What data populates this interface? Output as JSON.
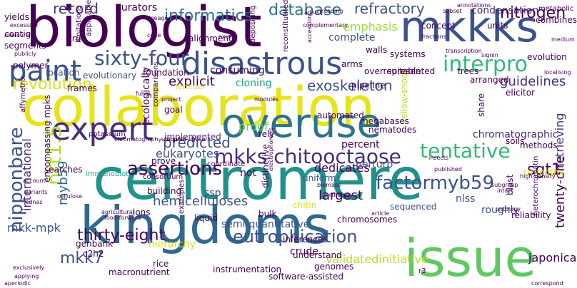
{
  "words": [
    {
      "text": "biologist",
      "color": "#440154"
    },
    {
      "text": "mkkks",
      "color": "#3b528b"
    },
    {
      "text": "collaboration",
      "color": "#e6e419"
    },
    {
      "text": "centromere",
      "color": "#21918c"
    },
    {
      "text": "kingdoms",
      "color": "#31688e"
    },
    {
      "text": "issue",
      "color": "#5ec962"
    },
    {
      "text": "overuse",
      "color": "#2c728e"
    },
    {
      "text": "disastrous",
      "color": "#3b528b"
    },
    {
      "text": "expert",
      "color": "#472d7b"
    },
    {
      "text": "paint",
      "color": "#3b528b"
    },
    {
      "text": "interpro",
      "color": "#35b779"
    },
    {
      "text": "sixty-four",
      "color": "#3b528b"
    },
    {
      "text": "informatics",
      "color": "#31688e"
    },
    {
      "text": "database",
      "color": "#2c728e"
    },
    {
      "text": "refractory",
      "color": "#3b528b"
    },
    {
      "text": "record",
      "color": "#472d7b"
    },
    {
      "text": "nitrogen",
      "color": "#440154"
    },
    {
      "text": "revolution",
      "color": "#d8e219"
    },
    {
      "text": "exoskeleton",
      "color": "#3b528b"
    },
    {
      "text": "guidelines",
      "color": "#472d7b"
    },
    {
      "text": "tentative",
      "color": "#35b779"
    },
    {
      "text": "mkks chitooctaose",
      "color": "#472d7b"
    },
    {
      "text": "factormyb59",
      "color": "#3b528b"
    },
    {
      "text": "nipponbare",
      "color": "#3b528b"
    },
    {
      "text": "assertions",
      "color": "#440154"
    },
    {
      "text": "predicted",
      "color": "#3b528b"
    },
    {
      "text": "eukaryotes",
      "color": "#3b528b"
    },
    {
      "text": "hemicelluloses",
      "color": "#3b528b"
    },
    {
      "text": "thirty-eight",
      "color": "#440154"
    },
    {
      "text": "eutrophication",
      "color": "#3b528b"
    },
    {
      "text": "mkk7",
      "color": "#3b528b"
    },
    {
      "text": "sgt1",
      "color": "#440154"
    },
    {
      "text": "nrt1.5",
      "color": "#b5de2b"
    },
    {
      "text": "myb59",
      "color": "#31688e"
    },
    {
      "text": "twenty-one",
      "color": "#440154"
    },
    {
      "text": "retrieving",
      "color": "#472d7b"
    },
    {
      "text": "chromatographic",
      "color": "#472d7b"
    },
    {
      "text": "condensation",
      "color": "#472d7b"
    },
    {
      "text": "explicit",
      "color": "#440154"
    },
    {
      "text": "consuming",
      "color": "#440154"
    },
    {
      "text": "curators",
      "color": "#440154"
    },
    {
      "text": "emphasis",
      "color": "#9fda3a"
    },
    {
      "text": "largest",
      "color": "#440154"
    },
    {
      "text": "mkk-mpk",
      "color": "#3b528b"
    },
    {
      "text": "international",
      "color": "#472d7b"
    },
    {
      "text": "validatedinitiative",
      "color": "#b5de2b"
    },
    {
      "text": "japonica",
      "color": "#440154"
    },
    {
      "text": "dedicates",
      "color": "#440154"
    },
    {
      "text": "semi-quantitative",
      "color": "#3b528b"
    },
    {
      "text": "crude",
      "color": "#440154"
    },
    {
      "text": "percent",
      "color": "#440154"
    },
    {
      "text": "cloning",
      "color": "#1fa188"
    },
    {
      "text": "ssp",
      "color": "#3b528b"
    },
    {
      "text": "not",
      "color": "#440154"
    },
    {
      "text": "perturb",
      "color": "#3b528b"
    },
    {
      "text": "nlss",
      "color": "#3b528b"
    },
    {
      "text": "roughly",
      "color": "#3b528b"
    },
    {
      "text": "genomes",
      "color": "#440154"
    },
    {
      "text": "chromosomes",
      "color": "#440154"
    },
    {
      "text": "inferences",
      "color": "#440154"
    },
    {
      "text": "instrumentation",
      "color": "#440154"
    },
    {
      "text": "software-assisted",
      "color": "#440154"
    },
    {
      "text": "proof",
      "color": "#6ccd5a"
    },
    {
      "text": "complete",
      "color": "#3b528b"
    },
    {
      "text": "yellow-shoot",
      "color": "#b5de2b"
    },
    {
      "text": "automated",
      "color": "#440154"
    },
    {
      "text": "megabases",
      "color": "#440154"
    },
    {
      "text": "nematodes",
      "color": "#440154"
    },
    {
      "text": "implemented",
      "color": "#472d7b"
    },
    {
      "text": "rice",
      "color": "#440154"
    },
    {
      "text": "hierarchy",
      "color": "#d8e219"
    },
    {
      "text": "building",
      "color": "#440154"
    },
    {
      "text": "examples",
      "color": "#440154"
    },
    {
      "text": "potassium",
      "color": "#440154"
    },
    {
      "text": "genbank",
      "color": "#440154"
    },
    {
      "text": "c2h2",
      "color": "#440154"
    },
    {
      "text": "searches",
      "color": "#440154"
    },
    {
      "text": "immunoblot",
      "color": "#1fa188"
    },
    {
      "text": "ecologically",
      "color": "#440154"
    },
    {
      "text": "evolutionary",
      "color": "#3b528b"
    },
    {
      "text": "foundation",
      "color": "#440154"
    },
    {
      "text": "goal",
      "color": "#440154"
    },
    {
      "text": "trees",
      "color": "#440154"
    },
    {
      "text": "arranged",
      "color": "#440154"
    },
    {
      "text": "elicitor",
      "color": "#440154"
    },
    {
      "text": "evolution",
      "color": "#440154"
    },
    {
      "text": "reliability",
      "color": "#440154"
    },
    {
      "text": "strengths",
      "color": "#d8e219"
    },
    {
      "text": "methods",
      "color": "#440154"
    },
    {
      "text": "heterochromatin",
      "color": "#440154"
    },
    {
      "text": "soils",
      "color": "#440154"
    },
    {
      "text": "blast",
      "color": "#440154"
    },
    {
      "text": "share",
      "color": "#440154"
    },
    {
      "text": "understand",
      "color": "#440154"
    },
    {
      "text": "uniform",
      "color": "#3b528b"
    },
    {
      "text": "sequenced",
      "color": "#3b528b"
    },
    {
      "text": "chitin",
      "color": "#d8e219"
    },
    {
      "text": "distinctive",
      "color": "#440154"
    },
    {
      "text": "liquid",
      "color": "#440154"
    },
    {
      "text": "bulk",
      "color": "#440154"
    },
    {
      "text": "ions",
      "color": "#440154"
    },
    {
      "text": "consortium",
      "color": "#440154"
    },
    {
      "text": "coordinate",
      "color": "#440154"
    },
    {
      "text": "rely",
      "color": "#440154"
    },
    {
      "text": "prove",
      "color": "#440154"
    },
    {
      "text": "frames",
      "color": "#440154"
    },
    {
      "text": "fertilizer",
      "color": "#d8e219"
    },
    {
      "text": "pipeline",
      "color": "#440154"
    },
    {
      "text": "encompassing mpks",
      "color": "#440154"
    },
    {
      "text": "yields",
      "color": "#440154"
    },
    {
      "text": "contigs",
      "color": "#440154"
    },
    {
      "text": "segments",
      "color": "#440154"
    },
    {
      "text": "polymer",
      "color": "#440154"
    },
    {
      "text": "location",
      "color": "#3b528b"
    },
    {
      "text": "applicable",
      "color": "#440154"
    },
    {
      "text": "limitations",
      "color": "#440154"
    },
    {
      "text": "alignments",
      "color": "#440154"
    },
    {
      "text": "true",
      "color": "#440154"
    },
    {
      "text": "arms",
      "color": "#440154"
    },
    {
      "text": "suitable",
      "color": "#440154"
    },
    {
      "text": "systems",
      "color": "#440154"
    },
    {
      "text": "walls",
      "color": "#440154"
    },
    {
      "text": "concept",
      "color": "#440154"
    },
    {
      "text": "units",
      "color": "#440154"
    },
    {
      "text": "combines",
      "color": "#440154"
    },
    {
      "text": "metabolic",
      "color": "#440154"
    },
    {
      "text": "overrepresented",
      "color": "#440154"
    },
    {
      "text": "macronutrient",
      "color": "#440154"
    },
    {
      "text": "affymetrix",
      "color": "#440154"
    },
    {
      "text": "r3",
      "color": "#440154"
    },
    {
      "text": "reconstitutited",
      "color": "#440154"
    },
    {
      "text": "depositing",
      "color": "#440154"
    },
    {
      "text": "accession",
      "color": "#440154"
    },
    {
      "text": "annotations",
      "color": "#440154"
    },
    {
      "text": "subset",
      "color": "#440154"
    },
    {
      "text": "chromatography-coupled",
      "color": "#440154"
    },
    {
      "text": "ubiquitin-ligase",
      "color": "#440154"
    },
    {
      "text": "cellulose",
      "color": "#440154"
    },
    {
      "text": "comparisons",
      "color": "#440154"
    },
    {
      "text": "fungi",
      "color": "#440154"
    },
    {
      "text": "modules",
      "color": "#440154"
    },
    {
      "text": "high-density",
      "color": "#440154"
    },
    {
      "text": "reading",
      "color": "#440154"
    },
    {
      "text": "excessive",
      "color": "#440154"
    },
    {
      "text": "measure",
      "color": "#440154"
    },
    {
      "text": "publicly",
      "color": "#440154"
    },
    {
      "text": "account",
      "color": "#440154"
    },
    {
      "text": "variants",
      "color": "#440154"
    },
    {
      "text": "cdnas",
      "color": "#440154"
    },
    {
      "text": "agricultural",
      "color": "#440154"
    },
    {
      "text": "food-forward",
      "color": "#440154"
    },
    {
      "text": "applying",
      "color": "#440154"
    },
    {
      "text": "aperiodic",
      "color": "#440154"
    },
    {
      "text": "exclusively",
      "color": "#440154"
    },
    {
      "text": "published",
      "color": "#440154"
    },
    {
      "text": "insects",
      "color": "#440154"
    },
    {
      "text": "biomass",
      "color": "#440154"
    },
    {
      "text": "orthology",
      "color": "#440154"
    },
    {
      "text": "article",
      "color": "#440154"
    },
    {
      "text": "correspond",
      "color": "#440154"
    },
    {
      "text": "ontology",
      "color": "#440154"
    },
    {
      "text": "localising",
      "color": "#440154"
    },
    {
      "text": "subgroup",
      "color": "#440154"
    },
    {
      "text": "intact",
      "color": "#440154"
    },
    {
      "text": "code",
      "color": "#440154"
    },
    {
      "text": "lineage",
      "color": "#440154"
    },
    {
      "text": "fractions",
      "color": "#440154"
    },
    {
      "text": "medium",
      "color": "#440154"
    },
    {
      "text": "signin",
      "color": "#440154"
    },
    {
      "text": "project",
      "color": "#440154"
    },
    {
      "text": "electrophoresis",
      "color": "#440154"
    },
    {
      "text": "transcription",
      "color": "#440154"
    },
    {
      "text": "complementary",
      "color": "#440154"
    },
    {
      "text": "adjust",
      "color": "#440154"
    },
    {
      "text": "exist",
      "color": "#440154"
    }
  ]
}
